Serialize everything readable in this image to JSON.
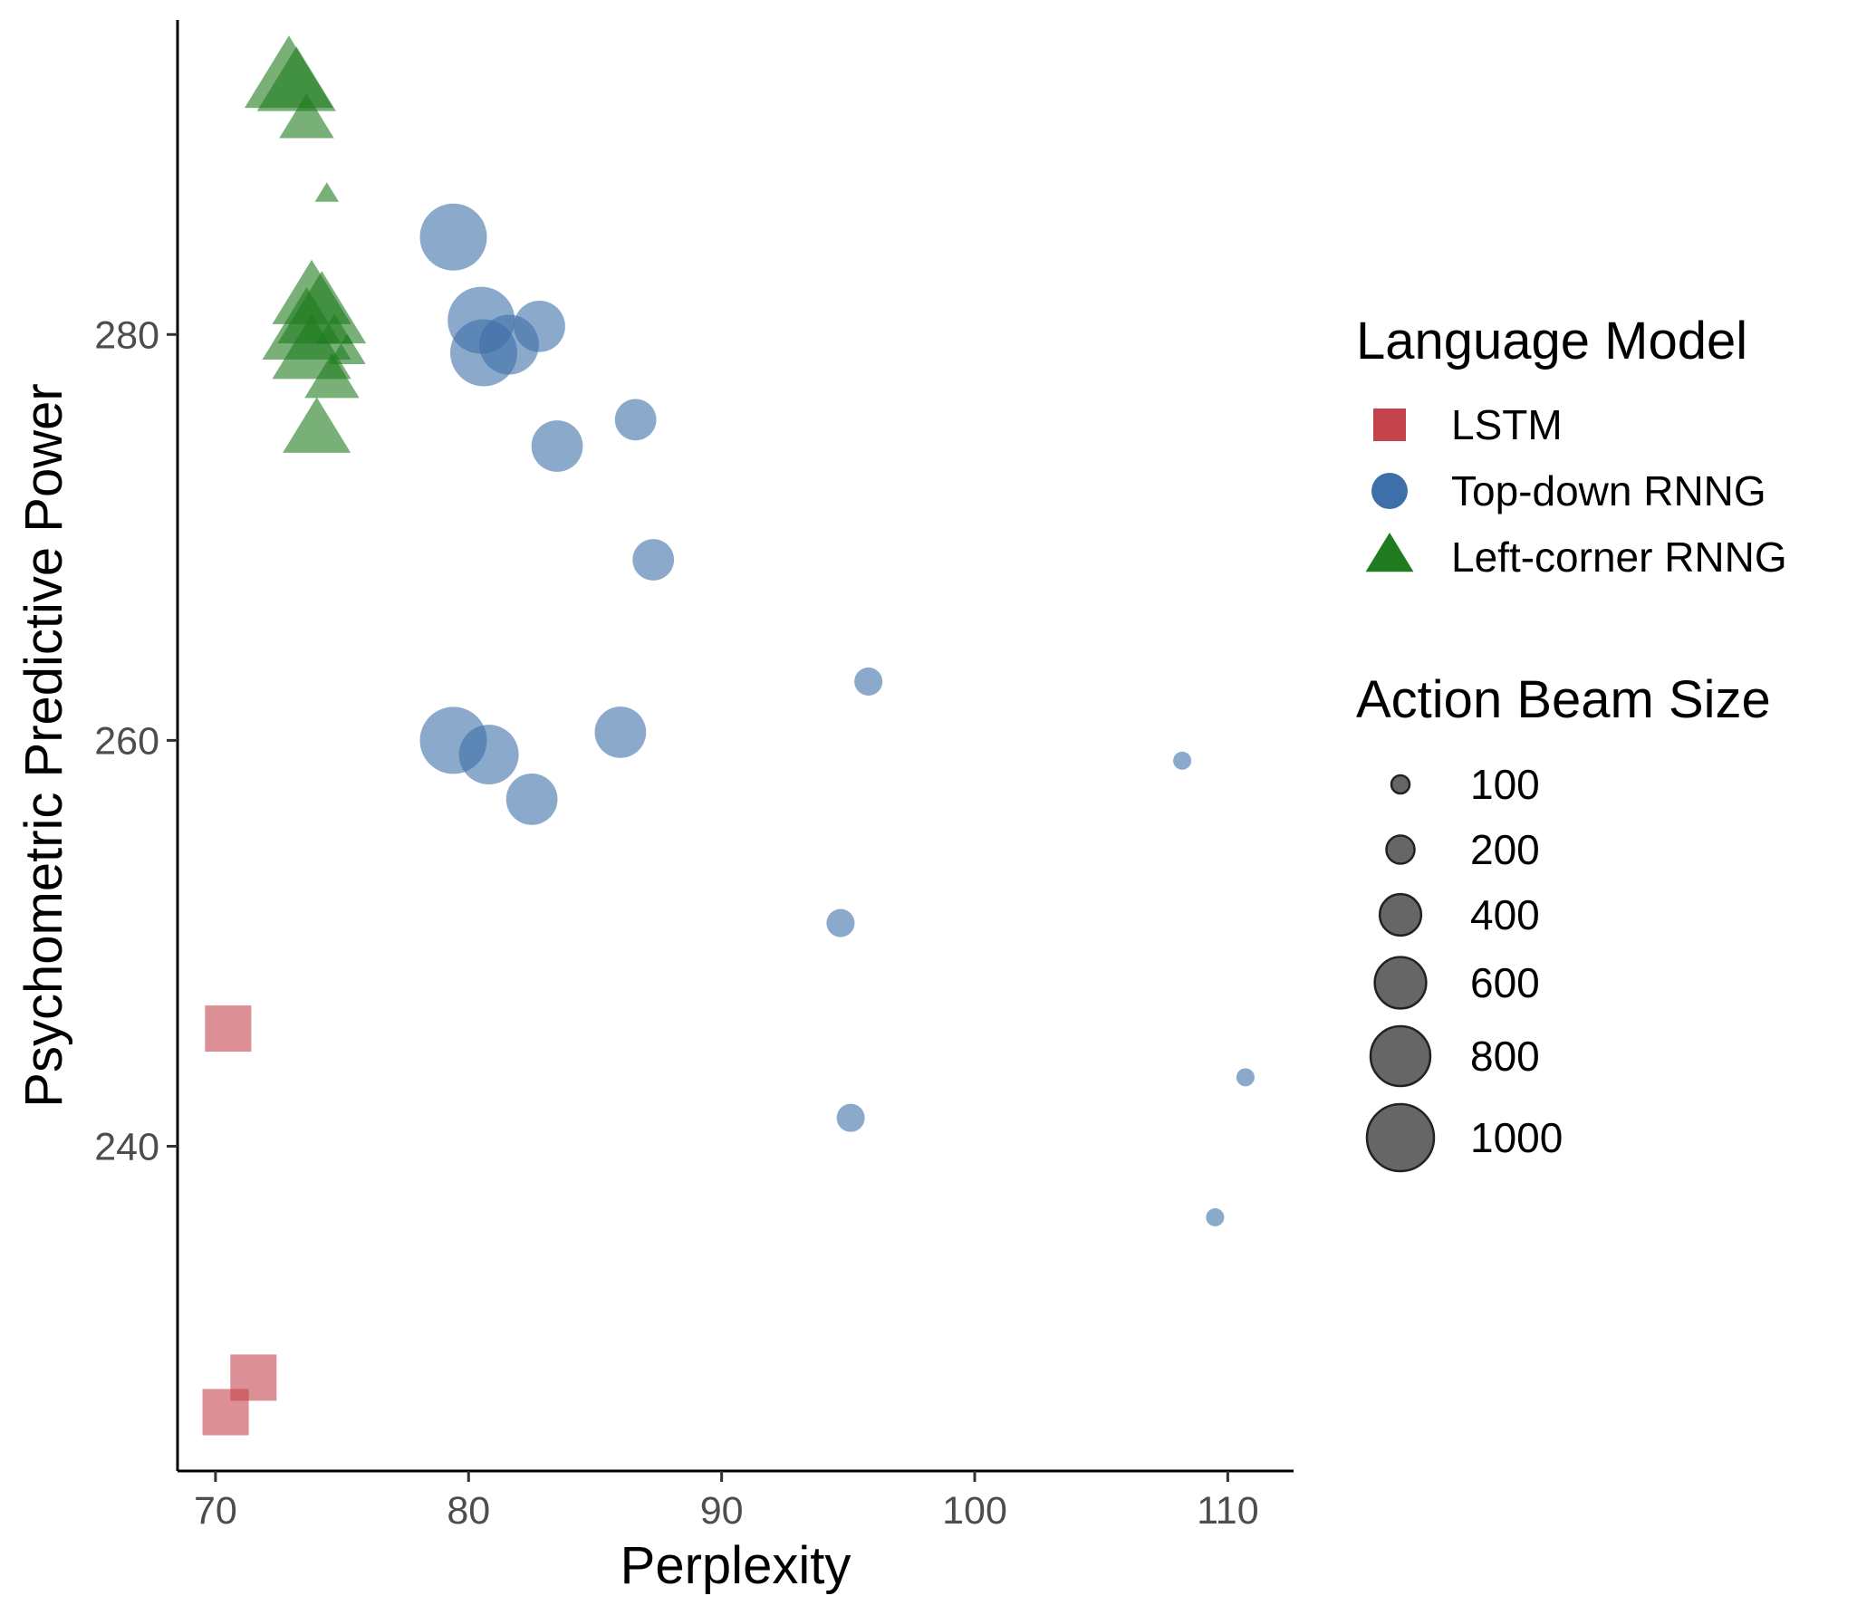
{
  "chart_data": {
    "type": "scatter",
    "xlabel": "Perplexity",
    "ylabel": "Psychometric Predictive Power",
    "xlim": [
      68.5,
      112.6
    ],
    "ylim": [
      224.0,
      295.5
    ],
    "x_ticks": [
      70,
      80,
      90,
      100,
      110
    ],
    "y_ticks": [
      240,
      260,
      280
    ],
    "x_tick_labels": [
      "70",
      "80",
      "90",
      "100",
      "110"
    ],
    "y_tick_labels": [
      "240",
      "260",
      "280"
    ],
    "grid": false,
    "legend_placement": "right",
    "color_legend": {
      "title": "Language Model",
      "entries": [
        {
          "label": "LSTM",
          "shape": "square",
          "color": "#c4444c"
        },
        {
          "label": "Top-down RNNG",
          "shape": "circle",
          "color": "#3d6fa8"
        },
        {
          "label": "Left-corner RNNG",
          "shape": "triangle",
          "color": "#1e7b1e"
        }
      ]
    },
    "size_legend": {
      "title": "Action Beam Size",
      "entries": [
        {
          "label": "100",
          "value": 100
        },
        {
          "label": "200",
          "value": 200
        },
        {
          "label": "400",
          "value": 400
        },
        {
          "label": "600",
          "value": 600
        },
        {
          "label": "800",
          "value": 800
        },
        {
          "label": "1000",
          "value": 1000
        }
      ]
    },
    "series": [
      {
        "name": "LSTM",
        "shape": "square",
        "color": "#c4444c",
        "points": [
          {
            "x": 70.5,
            "y": 245.8,
            "size": 600
          },
          {
            "x": 71.5,
            "y": 228.6,
            "size": 600
          },
          {
            "x": 70.4,
            "y": 226.9,
            "size": 600
          }
        ]
      },
      {
        "name": "Top-down RNNG",
        "shape": "circle",
        "color": "#3d6fa8",
        "points": [
          {
            "x": 79.4,
            "y": 284.8,
            "size": 1000
          },
          {
            "x": 80.5,
            "y": 280.7,
            "size": 1000
          },
          {
            "x": 80.6,
            "y": 279.1,
            "size": 1000
          },
          {
            "x": 81.6,
            "y": 279.5,
            "size": 800
          },
          {
            "x": 82.8,
            "y": 280.4,
            "size": 600
          },
          {
            "x": 86.6,
            "y": 275.8,
            "size": 400
          },
          {
            "x": 83.5,
            "y": 274.5,
            "size": 600
          },
          {
            "x": 87.3,
            "y": 268.9,
            "size": 400
          },
          {
            "x": 95.8,
            "y": 262.9,
            "size": 200
          },
          {
            "x": 79.4,
            "y": 260.0,
            "size": 1000
          },
          {
            "x": 80.8,
            "y": 259.3,
            "size": 800
          },
          {
            "x": 86.0,
            "y": 260.4,
            "size": 600
          },
          {
            "x": 82.5,
            "y": 257.1,
            "size": 600
          },
          {
            "x": 94.7,
            "y": 251.0,
            "size": 200
          },
          {
            "x": 95.1,
            "y": 241.4,
            "size": 200
          },
          {
            "x": 108.2,
            "y": 259.0,
            "size": 100
          },
          {
            "x": 110.7,
            "y": 243.4,
            "size": 100
          },
          {
            "x": 109.5,
            "y": 236.5,
            "size": 100
          }
        ]
      },
      {
        "name": "Left-corner RNNG",
        "shape": "triangle",
        "color": "#1e7b1e",
        "points": [
          {
            "x": 72.9,
            "y": 292.5,
            "size": 1000
          },
          {
            "x": 73.2,
            "y": 292.2,
            "size": 800
          },
          {
            "x": 73.6,
            "y": 290.5,
            "size": 400
          },
          {
            "x": 74.4,
            "y": 286.9,
            "size": 100
          },
          {
            "x": 73.8,
            "y": 281.7,
            "size": 800
          },
          {
            "x": 74.2,
            "y": 280.9,
            "size": 1000
          },
          {
            "x": 73.6,
            "y": 280.1,
            "size": 1000
          },
          {
            "x": 73.8,
            "y": 279.0,
            "size": 800
          },
          {
            "x": 74.7,
            "y": 280.1,
            "size": 200
          },
          {
            "x": 75.2,
            "y": 279.1,
            "size": 200
          },
          {
            "x": 74.6,
            "y": 277.7,
            "size": 400
          },
          {
            "x": 74.0,
            "y": 275.2,
            "size": 600
          }
        ]
      }
    ]
  }
}
